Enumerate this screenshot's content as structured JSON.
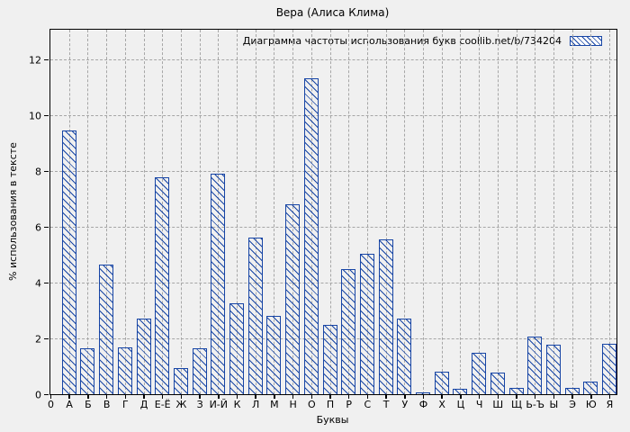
{
  "figure": {
    "background": "#f0f0f0",
    "grid_color": "#a6a6a6",
    "border_color": "#000000"
  },
  "chart_data": {
    "type": "bar",
    "title": "Вера (Алиса Клима)",
    "legend_label": "Диаграмма частоты использования букв coollib.net/b/734204",
    "legend_position": "top-right",
    "xlabel": "Буквы",
    "ylabel": "% использования в тексте",
    "categories": [
      "0",
      "А",
      "Б",
      "В",
      "Г",
      "Д",
      "Е-Ё",
      "Ж",
      "З",
      "И-Й",
      "К",
      "Л",
      "М",
      "Н",
      "О",
      "П",
      "Р",
      "С",
      "Т",
      "У",
      "Ф",
      "Х",
      "Ц",
      "Ч",
      "Ш",
      "Щ",
      "Ь-Ъ",
      "Ы",
      "Э",
      "Ю",
      "Я"
    ],
    "values": [
      0,
      9.45,
      1.66,
      4.66,
      1.68,
      2.71,
      7.78,
      0.93,
      1.66,
      7.9,
      3.27,
      5.61,
      2.81,
      6.81,
      11.32,
      2.49,
      4.49,
      5.04,
      5.55,
      2.72,
      0.08,
      0.82,
      0.19,
      1.49,
      0.78,
      0.23,
      2.07,
      1.78,
      0.22,
      0.46,
      1.82
    ],
    "yticks": [
      0,
      2,
      4,
      6,
      8,
      10,
      12
    ],
    "ylim": [
      0,
      13.07
    ],
    "bar_color": "#1745a5",
    "grid": true
  }
}
